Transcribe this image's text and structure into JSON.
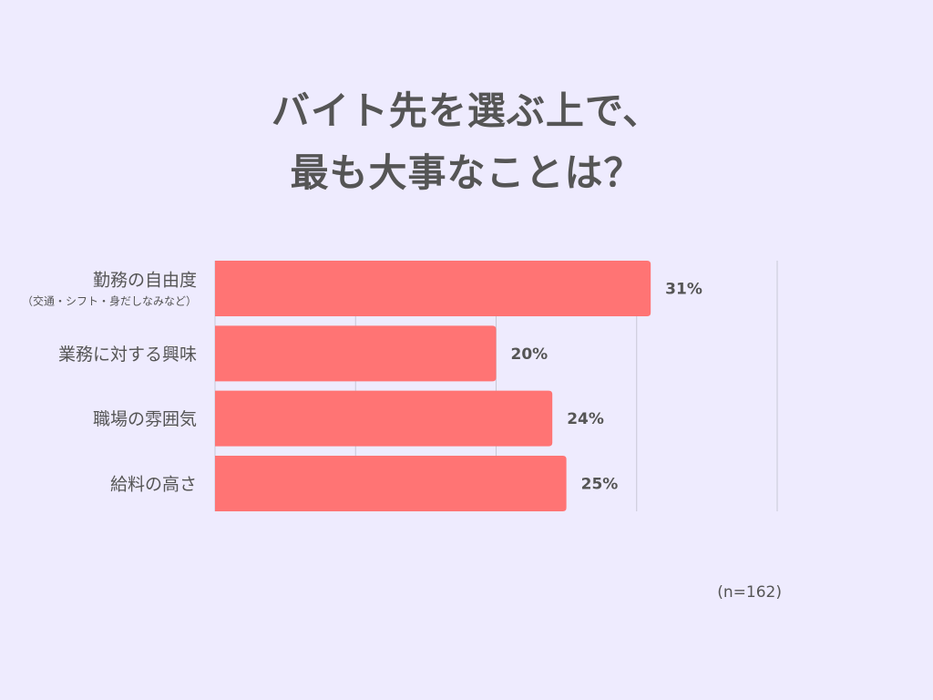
{
  "chart_data": {
    "type": "bar",
    "orientation": "horizontal",
    "title_lines": [
      "バイト先を選ぶ上で、",
      "最も大事なことは？"
    ],
    "categories": [
      {
        "label": "勤務の自由度",
        "sublabel": "（交通・シフト・身だしなみなど）"
      },
      {
        "label": "業務に対する興味",
        "sublabel": ""
      },
      {
        "label": "職場の雰囲気",
        "sublabel": ""
      },
      {
        "label": "給料の高さ",
        "sublabel": ""
      }
    ],
    "values": [
      31,
      20,
      24,
      25
    ],
    "value_labels": [
      "31%",
      "20%",
      "24%",
      "25%"
    ],
    "xlim": [
      0,
      40
    ],
    "grid": true,
    "bar_color": "#ff7474",
    "grid_color": "#c8c8d6",
    "xlabel": "",
    "ylabel": ""
  },
  "sample_size": "(n=162)"
}
